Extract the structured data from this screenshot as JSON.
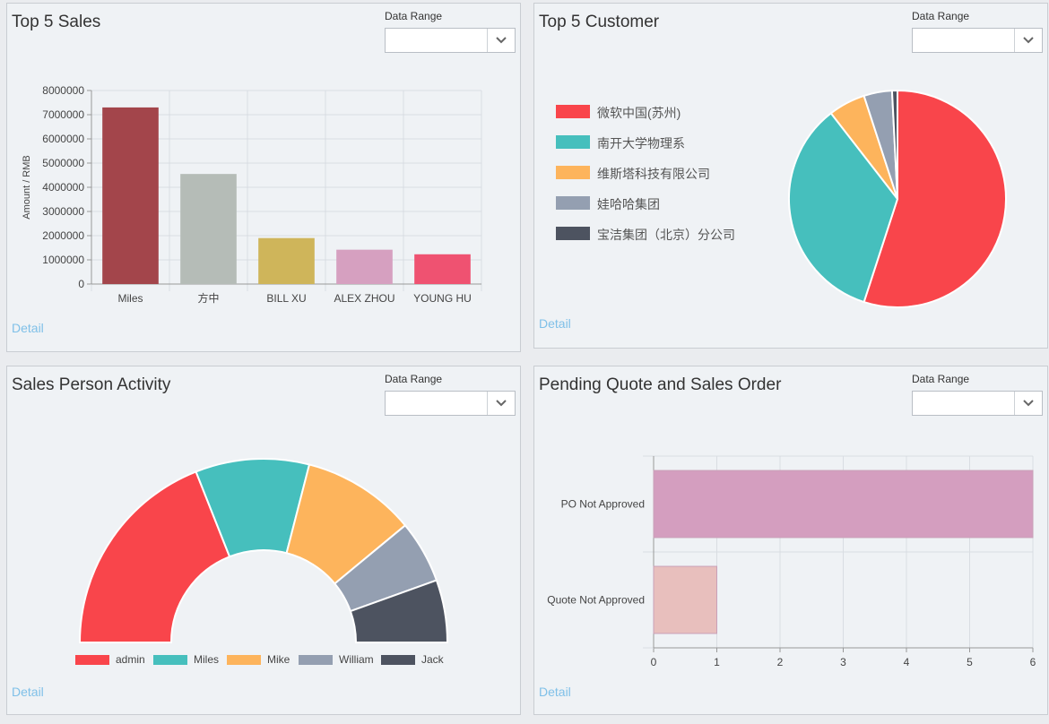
{
  "colors": {
    "red": "#f9454b",
    "teal": "#46bfbd",
    "orange": "#fdb45c",
    "gray": "#949fb1",
    "dark": "#4d5360",
    "link": "#7fc0e8"
  },
  "common": {
    "range_label": "Data Range",
    "range_value": "",
    "chevron_icon": "chevron-down-icon",
    "detail_label": "Detail"
  },
  "panels": {
    "top_sales": {
      "title": "Top 5 Sales"
    },
    "top_customer": {
      "title": "Top 5 Customer"
    },
    "activity": {
      "title": "Sales Person Activity"
    },
    "pending": {
      "title": "Pending Quote and Sales Order"
    }
  },
  "chart_data": [
    {
      "id": "top_sales",
      "type": "bar",
      "title": "Top 5 Sales",
      "ylabel": "Amount / RMB",
      "xlabel": "",
      "ylim": [
        0,
        8000000
      ],
      "yticks": [
        0,
        1000000,
        2000000,
        3000000,
        4000000,
        5000000,
        6000000,
        7000000,
        8000000
      ],
      "grid": true,
      "categories": [
        "Miles",
        "方中",
        "BILL XU",
        "ALEX ZHOU",
        "YOUNG HU"
      ],
      "values": [
        7300000,
        4550000,
        1900000,
        1420000,
        1230000
      ],
      "colors": [
        "#a3454b",
        "#b5bcb7",
        "#cfb55a",
        "#d6a0c0",
        "#ef5271"
      ]
    },
    {
      "id": "top_customer",
      "type": "pie",
      "title": "Top 5 Customer",
      "legend": "left",
      "labels": [
        "微软中国(苏州)",
        "南开大学物理系",
        "维斯塔科技有限公司",
        "娃哈哈集团",
        "宝洁集团（北京）分公司"
      ],
      "values": [
        55,
        34.5,
        5.5,
        4.2,
        0.8
      ],
      "colors": [
        "#f9454b",
        "#46bfbd",
        "#fdb45c",
        "#949fb1",
        "#4d5360"
      ]
    },
    {
      "id": "activity",
      "type": "pie",
      "subtype": "half-doughnut",
      "title": "Sales Person Activity",
      "legend": "bottom",
      "labels": [
        "admin",
        "Miles",
        "Mike",
        "William",
        "Jack"
      ],
      "values": [
        38,
        20,
        20,
        11,
        11
      ],
      "colors": [
        "#f9454b",
        "#46bfbd",
        "#fdb45c",
        "#949fb1",
        "#4d5360"
      ]
    },
    {
      "id": "pending",
      "type": "bar",
      "orientation": "horizontal",
      "title": "Pending Quote and Sales Order",
      "categories": [
        "PO Not Approved",
        "Quote Not Approved"
      ],
      "values": [
        6,
        1
      ],
      "xlim": [
        0,
        6
      ],
      "xticks": [
        0,
        1,
        2,
        3,
        4,
        5,
        6
      ],
      "grid": true,
      "colors": [
        "#d49ebf",
        "#e8bfbd"
      ]
    }
  ]
}
